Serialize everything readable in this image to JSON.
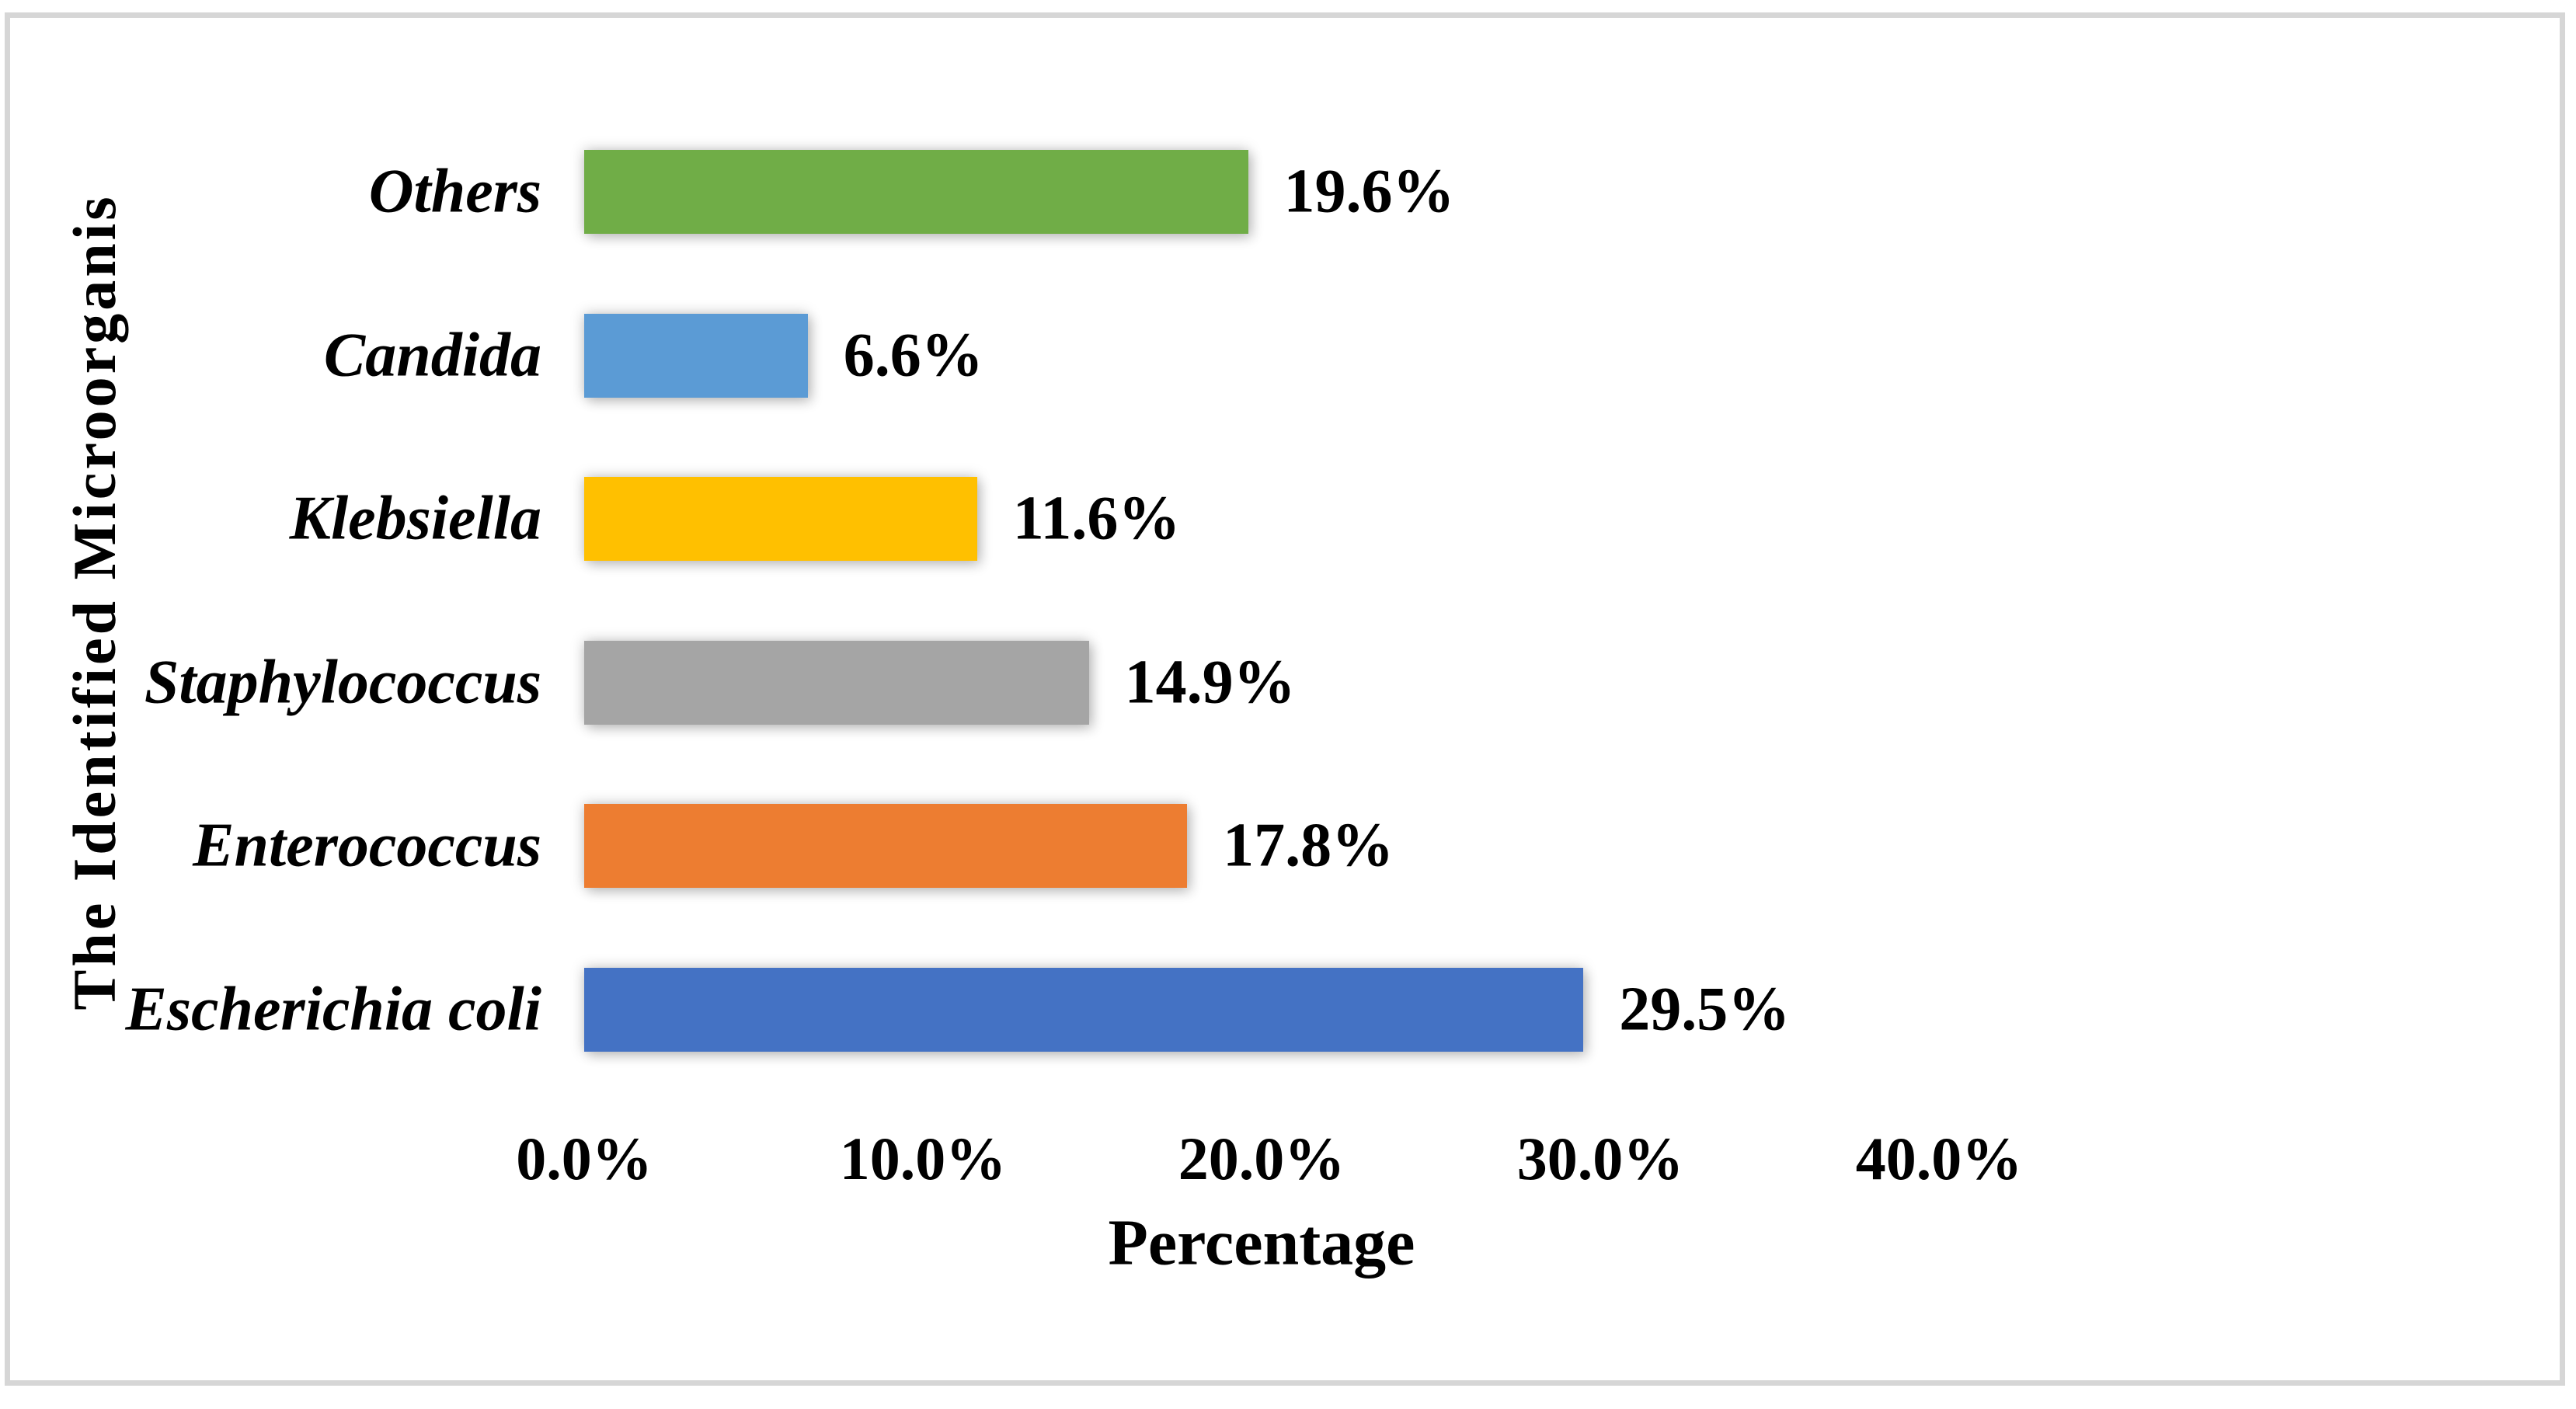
{
  "chart_data": {
    "type": "bar",
    "orientation": "horizontal",
    "title": "",
    "xlabel": "Percentage",
    "ylabel": "The Identified Microorganis",
    "categories": [
      "Others",
      "Candida",
      "Klebsiella",
      "Staphylococcus",
      "Enterococcus",
      "Escherichia coli"
    ],
    "values": [
      19.6,
      6.6,
      11.6,
      14.9,
      17.8,
      29.5
    ],
    "value_labels": [
      "19.6%",
      "6.6%",
      "11.6%",
      "14.9%",
      "17.8%",
      "29.5%"
    ],
    "bar_colors": [
      "#70AD47",
      "#5B9BD5",
      "#FFC000",
      "#A5A5A5",
      "#ED7D31",
      "#4472C4"
    ],
    "xlim": [
      0,
      40
    ],
    "x_tick_values": [
      0,
      10,
      20,
      30,
      40
    ],
    "x_tick_labels": [
      "0.0%",
      "10.0%",
      "20.0%",
      "30.0%",
      "40.0%"
    ],
    "grid": false,
    "legend": false,
    "frame_color": "#d6d6d6",
    "background_color": "#ffffff"
  }
}
